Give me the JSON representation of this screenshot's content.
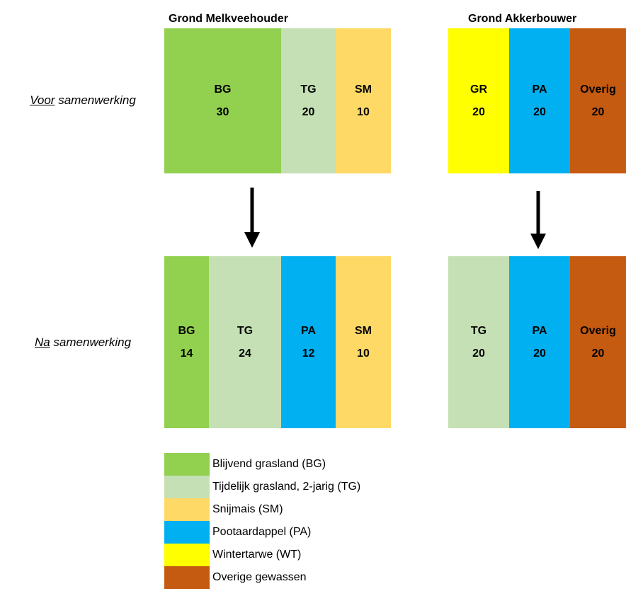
{
  "headers": {
    "left": "Grond Melkveehouder",
    "right": "Grond Akkerbouwer"
  },
  "rows": [
    {
      "label": {
        "underlined": "Voor",
        "rest": "samenwerking"
      },
      "left": [
        {
          "code": "BG",
          "value": 30
        },
        {
          "code": "TG",
          "value": 20
        },
        {
          "code": "SM",
          "value": 10
        }
      ],
      "right": [
        {
          "code": "GR",
          "value": 20
        },
        {
          "code": "PA",
          "value": 20
        },
        {
          "code": "Overig",
          "value": 20
        }
      ]
    },
    {
      "label": {
        "underlined": "Na",
        "rest": "samenwerking"
      },
      "left": [
        {
          "code": "BG",
          "value": 14
        },
        {
          "code": "TG",
          "value": 24
        },
        {
          "code": "PA",
          "value": 12
        },
        {
          "code": "SM",
          "value": 10
        }
      ],
      "right": [
        {
          "code": "TG",
          "value": 20
        },
        {
          "code": "PA",
          "value": 20
        },
        {
          "code": "Overig",
          "value": 20
        }
      ]
    }
  ],
  "legend": [
    "Blijvend grasland (BG)",
    "Tijdelijk grasland, 2-jarig (TG)",
    "Snijmais (SM)",
    "Pootaardappel (PA)",
    "Wintertarwe (WT)",
    "Overige gewassen"
  ]
}
